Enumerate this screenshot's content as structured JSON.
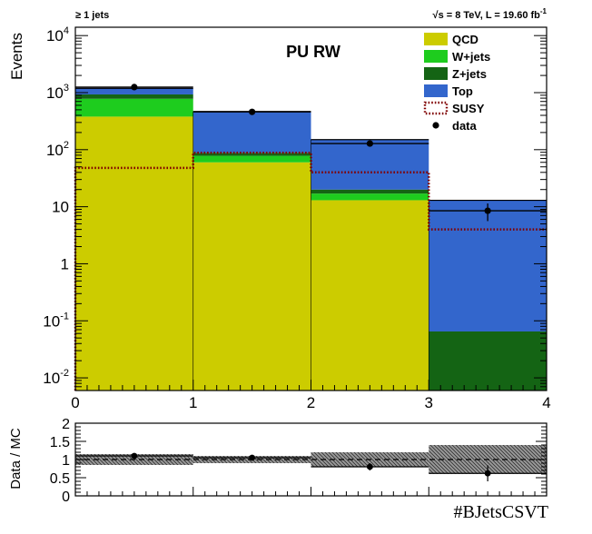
{
  "chart_data": [
    {
      "type": "bar",
      "stacked": true,
      "yscale": "log",
      "title": "PU RW",
      "top_left_label": "≥ 1 jets",
      "top_right_label": "√s = 8 TeV, L = 19.60 fb⁻¹",
      "top_right_parts": {
        "sqrt": "√",
        "s_text": "s = 8 TeV, L = 19.60 fb",
        "exp": "-1"
      },
      "ylabel": "Events",
      "xlabel": "#BJetsCSVT",
      "bin_edges": [
        0,
        1,
        2,
        3,
        4
      ],
      "xlim": [
        0,
        4
      ],
      "ylim": [
        0.006,
        14000
      ],
      "xticks": [
        "0",
        "1",
        "2",
        "3",
        "4"
      ],
      "yticks": [
        {
          "value": 10000,
          "base": "10",
          "exp": "4"
        },
        {
          "value": 1000,
          "base": "10",
          "exp": "3"
        },
        {
          "value": 100,
          "base": "10",
          "exp": "2"
        },
        {
          "value": 10,
          "base": "10",
          "exp": ""
        },
        {
          "value": 1,
          "base": "1",
          "exp": ""
        },
        {
          "value": 0.1,
          "base": "10",
          "exp": "-1"
        },
        {
          "value": 0.01,
          "base": "10",
          "exp": "-2"
        }
      ],
      "legend_position": "top-right",
      "series": [
        {
          "name": "QCD",
          "color": "#cccc00",
          "values": [
            380,
            60,
            13,
            0
          ]
        },
        {
          "name": "W+jets",
          "color": "#1ecc1e",
          "values": [
            400,
            18,
            4,
            0
          ]
        },
        {
          "name": "Z+jets",
          "color": "#146414",
          "values": [
            150,
            10,
            3,
            0.065
          ]
        },
        {
          "name": "Top",
          "color": "#3366cc",
          "values": [
            260,
            380,
            130,
            12.9
          ]
        }
      ],
      "overlay": {
        "name": "SUSY",
        "color": "#800000",
        "style": "dotted",
        "values": [
          48,
          88,
          40,
          4
        ]
      },
      "data": {
        "name": "data",
        "color": "#000000",
        "values": [
          1250,
          460,
          128,
          8.5
        ],
        "errors": [
          35,
          21,
          11,
          2.9
        ]
      },
      "legend_entries": [
        "QCD",
        "W+jets",
        "Z+jets",
        "Top",
        "SUSY",
        "data"
      ]
    },
    {
      "type": "scatter",
      "ylabel": "Data / MC",
      "xlim": [
        0,
        4
      ],
      "ylim": [
        0,
        2
      ],
      "yticks": [
        "0",
        "0.5",
        "1",
        "1.5",
        "2"
      ],
      "reference_line": 1,
      "ratio": [
        1.1,
        1.05,
        0.8,
        0.62
      ],
      "ratio_errors": [
        0.05,
        0.05,
        0.1,
        0.22
      ],
      "band_halfwidth": [
        0.15,
        0.1,
        0.2,
        0.4
      ]
    }
  ]
}
